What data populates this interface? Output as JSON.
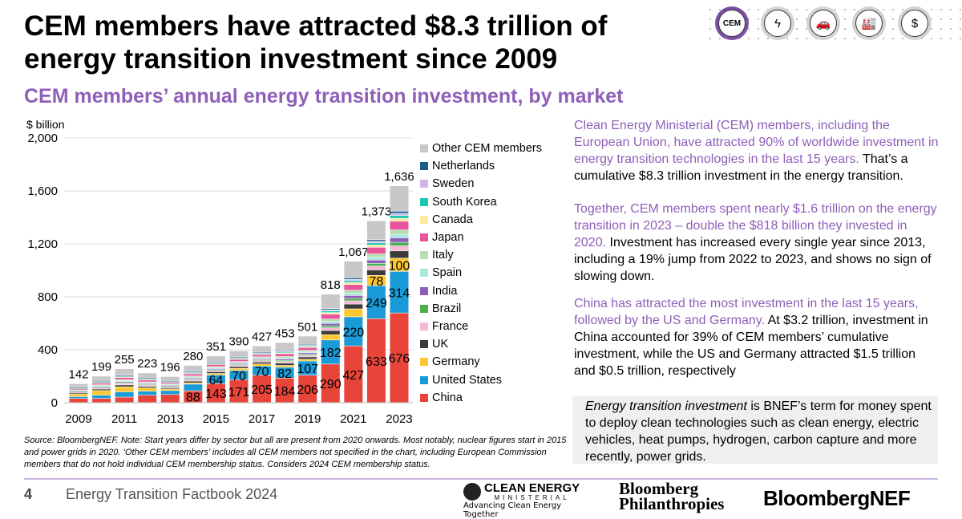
{
  "header": {
    "title": "CEM members have attracted $8.3 trillion of energy transition investment since 2009",
    "subtitle": "CEM members’ annual energy transition investment, by market",
    "icons": [
      {
        "name": "cem-badge-icon",
        "label": "CEM",
        "accent": "#7b4fa8"
      },
      {
        "name": "lightning-icon",
        "glyph": "ϟ"
      },
      {
        "name": "vehicles-icon",
        "glyph": "🚗"
      },
      {
        "name": "factory-icon",
        "glyph": "🏭"
      },
      {
        "name": "dollar-icon",
        "glyph": "$"
      }
    ]
  },
  "chart_data": {
    "type": "bar",
    "stacked": true,
    "ylabel": "$ billion",
    "ylim": [
      0,
      2000
    ],
    "yticks": [
      "0",
      "400",
      "800",
      "1,200",
      "1,600",
      "2,000"
    ],
    "ytick_values": [
      0,
      400,
      800,
      1200,
      1600,
      2000
    ],
    "grid": true,
    "legend_position": "right",
    "categories": [
      "2009",
      "2010",
      "2011",
      "2012",
      "2013",
      "2014",
      "2015",
      "2016",
      "2017",
      "2018",
      "2019",
      "2020",
      "2021",
      "2022",
      "2023"
    ],
    "xtick_labels": [
      "2009",
      "2011",
      "2013",
      "2015",
      "2017",
      "2019",
      "2021",
      "2023"
    ],
    "totals": [
      142,
      199,
      255,
      223,
      196,
      280,
      351,
      390,
      427,
      453,
      501,
      818,
      1067,
      1373,
      1636
    ],
    "total_labels": [
      "142",
      "199",
      "255",
      "223",
      "196",
      "280",
      "351",
      "390",
      "427",
      "453",
      "501",
      "818",
      "1,067",
      "1,373",
      "1,636"
    ],
    "series": [
      {
        "name": "China",
        "color": "#e8443a",
        "label_from": 2014,
        "values": [
          30,
          30,
          40,
          55,
          60,
          88,
          143,
          171,
          205,
          184,
          206,
          290,
          427,
          633,
          676
        ]
      },
      {
        "name": "United States",
        "color": "#1a9bd7",
        "label_from": 2015,
        "values": [
          14,
          25,
          40,
          30,
          30,
          50,
          64,
          70,
          70,
          82,
          107,
          182,
          220,
          249,
          314
        ]
      },
      {
        "name": "Germany",
        "color": "#fdc82f",
        "label_from": 2022,
        "values": [
          20,
          35,
          38,
          25,
          12,
          10,
          12,
          16,
          16,
          14,
          14,
          40,
          60,
          78,
          100
        ]
      },
      {
        "name": "UK",
        "color": "#3b3b3b",
        "values": [
          8,
          11,
          14,
          11,
          9,
          13,
          13,
          13,
          14,
          17,
          17,
          31,
          36,
          41,
          55
        ]
      },
      {
        "name": "France",
        "color": "#f6b9d5",
        "values": [
          5,
          8,
          10,
          8,
          7,
          9,
          9,
          9,
          10,
          12,
          12,
          21,
          25,
          29,
          38
        ]
      },
      {
        "name": "Brazil",
        "color": "#4caf50",
        "values": [
          4,
          5,
          7,
          6,
          5,
          7,
          7,
          7,
          7,
          9,
          9,
          15,
          18,
          21,
          27
        ]
      },
      {
        "name": "India",
        "color": "#8e5fb8",
        "values": [
          5,
          7,
          8,
          7,
          6,
          8,
          8,
          8,
          8,
          10,
          10,
          18,
          22,
          25,
          33
        ]
      },
      {
        "name": "Spain",
        "color": "#a8e6de",
        "values": [
          4,
          5,
          7,
          6,
          5,
          7,
          7,
          7,
          7,
          9,
          9,
          15,
          18,
          21,
          27
        ]
      },
      {
        "name": "Italy",
        "color": "#b5dfb0",
        "values": [
          5,
          7,
          8,
          7,
          6,
          8,
          8,
          8,
          8,
          10,
          10,
          18,
          22,
          25,
          33
        ]
      },
      {
        "name": "Japan",
        "color": "#e8559a",
        "values": [
          9,
          13,
          16,
          14,
          11,
          16,
          16,
          16,
          16,
          21,
          21,
          37,
          43,
          50,
          66
        ]
      },
      {
        "name": "Canada",
        "color": "#fde9a0",
        "values": [
          3,
          4,
          5,
          5,
          4,
          5,
          5,
          5,
          5,
          7,
          7,
          12,
          14,
          17,
          22
        ]
      },
      {
        "name": "South Korea",
        "color": "#1ec9b0",
        "values": [
          3,
          4,
          5,
          5,
          4,
          5,
          5,
          5,
          5,
          7,
          7,
          12,
          14,
          17,
          22
        ]
      },
      {
        "name": "Sweden",
        "color": "#d1b7e8",
        "values": [
          2,
          3,
          4,
          3,
          3,
          4,
          4,
          4,
          4,
          5,
          5,
          9,
          11,
          12,
          16
        ]
      },
      {
        "name": "Netherlands",
        "color": "#1c5f8f",
        "values": [
          2,
          3,
          4,
          3,
          3,
          4,
          4,
          4,
          4,
          5,
          5,
          9,
          11,
          12,
          16
        ]
      },
      {
        "name": "Other CEM members",
        "color": "#c8c8c8",
        "values": [
          28,
          39,
          49,
          38,
          31,
          46,
          46,
          47,
          48,
          61,
          62,
          109,
          126,
          143,
          191
        ]
      }
    ]
  },
  "right_text": {
    "p1_highlight": "Clean Energy Ministerial (CEM) members, including the European Union, have attracted 90% of worldwide investment in energy transition technologies in the last 15 years.",
    "p1_rest": " That’s a cumulative $8.3 trillion investment in the energy transition.",
    "p2_highlight": "Together, CEM members spent nearly $1.6 trillion on the energy transition in 2023 – double the $818 billion they invested in 2020.",
    "p2_rest": " Investment has increased every single year since 2013, including a 19% jump from 2022 to 2023, and shows no sign of slowing down.",
    "p3_highlight": "China has attracted the most investment in the last 15 years, followed by the US and Germany.",
    "p3_rest": " At $3.2 trillion, investment in China accounted for 39% of CEM members’ cumulative investment, while the US and Germany attracted $1.5 trillion and $0.5 trillion, respectively",
    "def_term": "Energy transition investment",
    "def_rest": " is BNEF’s term for money spent to deploy clean technologies such as clean energy, electric vehicles, heat pumps, hydrogen, carbon capture and more recently, power grids."
  },
  "source": "Source: BloombergNEF. Note: Start years differ by sector but all are present from 2020 onwards. Most notably, nuclear figures start in 2015 and power grids in 2020.  ‘Other CEM members’ includes all CEM members not specified in the chart, including European Commission members that do not hold individual CEM membership status. Considers 2024 CEM membership status.",
  "footer": {
    "page": "4",
    "title": "Energy Transition Factbook 2024",
    "logos": {
      "cem": "CLEAN ENERGY",
      "cem_sub": "MINISTERIAL",
      "cem_tag": "Advancing Clean Energy Together",
      "bp1": "Bloomberg",
      "bp2": "Philanthropies",
      "bnef": "BloombergNEF"
    }
  }
}
